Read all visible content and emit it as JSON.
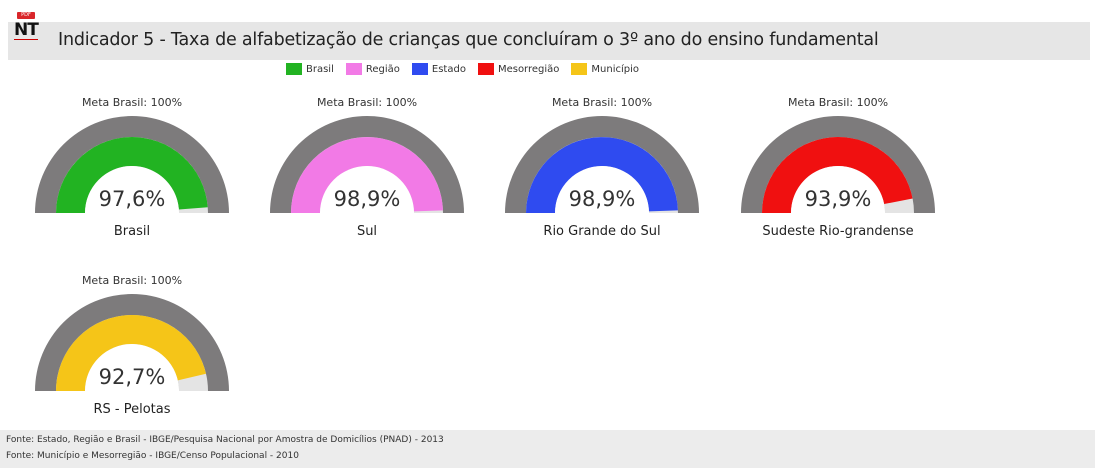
{
  "header": {
    "pdf_badge": "PDF",
    "nt_label": "NT",
    "title": "Indicador 5 - Taxa de alfabetização de crianças que concluíram o 3º ano do ensino fundamental"
  },
  "legend": [
    {
      "label": "Brasil",
      "color": "#22b322"
    },
    {
      "label": "Região",
      "color": "#f27ae6"
    },
    {
      "label": "Estado",
      "color": "#2f4bf0"
    },
    {
      "label": "Mesorregião",
      "color": "#f01010"
    },
    {
      "label": "Município",
      "color": "#f5c518"
    }
  ],
  "chart_data": {
    "type": "gauge",
    "max": 100,
    "target_label": "Meta Brasil: 100%",
    "gauges": [
      {
        "name": "Brasil",
        "value": 97.6,
        "value_label": "97,6%",
        "color": "#22b322"
      },
      {
        "name": "Sul",
        "value": 98.9,
        "value_label": "98,9%",
        "color": "#f27ae6"
      },
      {
        "name": "Rio Grande do Sul",
        "value": 98.9,
        "value_label": "98,9%",
        "color": "#2f4bf0"
      },
      {
        "name": "Sudeste Rio-grandense",
        "value": 93.9,
        "value_label": "93,9%",
        "color": "#f01010"
      },
      {
        "name": "RS - Pelotas",
        "value": 92.7,
        "value_label": "92,7%",
        "color": "#f5c518"
      }
    ]
  },
  "footer": {
    "line1": "Fonte: Estado, Região e Brasil - IBGE/Pesquisa Nacional por Amostra de Domicílios (PNAD) - 2013",
    "line2": "Fonte: Município e Mesorregião - IBGE/Censo Populacional - 2010"
  }
}
